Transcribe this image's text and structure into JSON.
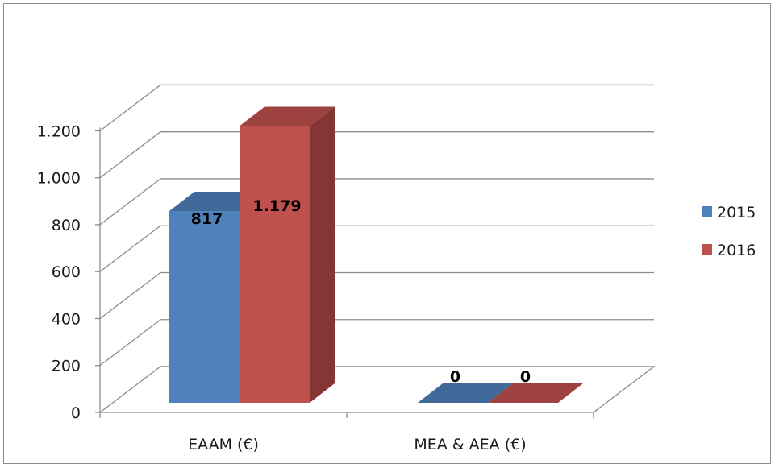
{
  "chart_data": {
    "type": "bar",
    "categories": [
      "EAAM (€)",
      "MEA & AEA (€)"
    ],
    "series": [
      {
        "name": "2015",
        "values": [
          817,
          0
        ],
        "labels": [
          "817",
          "0"
        ],
        "color": "#4f81bd"
      },
      {
        "name": "2016",
        "values": [
          1179,
          0
        ],
        "labels": [
          "1.179",
          "0"
        ],
        "color": "#c0504d"
      }
    ],
    "y_ticks": [
      {
        "value": 0,
        "label": "0"
      },
      {
        "value": 200,
        "label": "200"
      },
      {
        "value": 400,
        "label": "400"
      },
      {
        "value": 600,
        "label": "600"
      },
      {
        "value": 800,
        "label": "800"
      },
      {
        "value": 1000,
        "label": "1.000"
      },
      {
        "value": 1200,
        "label": "1.200"
      }
    ],
    "ylim": [
      0,
      1200
    ],
    "grid": true,
    "legend_position": "right",
    "style": "3d-clustered-column"
  }
}
